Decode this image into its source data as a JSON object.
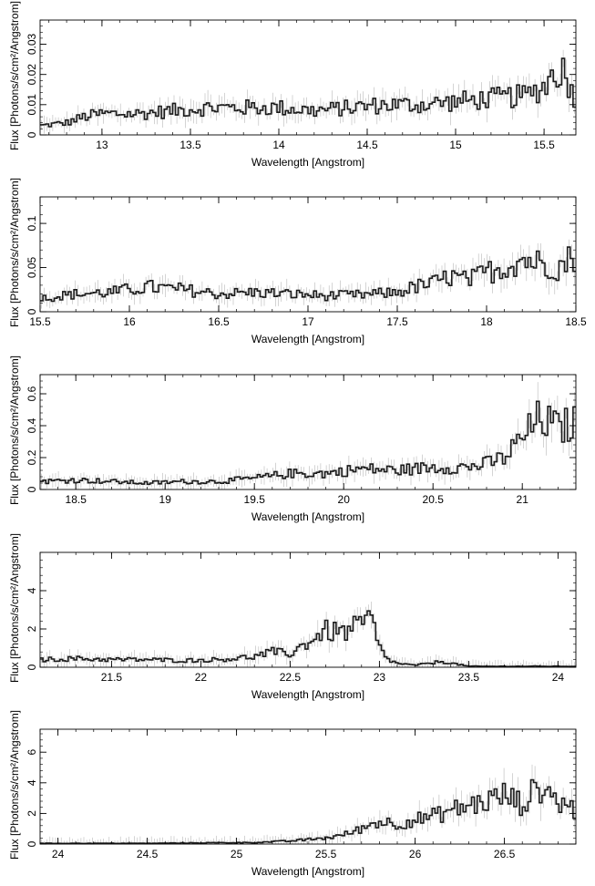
{
  "chart_data": [
    {
      "type": "line",
      "title": "",
      "xlabel": "Wavelength [Angstrom]",
      "ylabel": "Flux [Photons/s/cm²/Angstrom]",
      "xlim": [
        12.65,
        15.68
      ],
      "ylim": [
        0,
        0.038
      ],
      "xticks": [
        13,
        13.5,
        14,
        14.5,
        15,
        15.5
      ],
      "xtick_labels": [
        "13",
        "13.5",
        "14",
        "14.5",
        "15",
        "15.5"
      ],
      "yticks": [
        0,
        0.01,
        0.02,
        0.03
      ],
      "ytick_labels": [
        "0",
        "0.01",
        "0.02",
        "0.03"
      ],
      "grid": false,
      "series": [
        {
          "x": [
            12.65,
            12.8,
            12.9,
            13.0,
            13.2,
            13.4,
            13.6,
            13.8,
            14.0,
            14.2,
            14.4,
            14.6,
            14.8,
            15.0,
            15.2,
            15.4,
            15.5,
            15.55,
            15.6,
            15.68
          ],
          "y": [
            0.003,
            0.004,
            0.006,
            0.007,
            0.007,
            0.008,
            0.009,
            0.009,
            0.009,
            0.008,
            0.009,
            0.01,
            0.01,
            0.011,
            0.012,
            0.013,
            0.016,
            0.02,
            0.022,
            0.012
          ]
        }
      ]
    },
    {
      "type": "line",
      "title": "",
      "xlabel": "Wavelength [Angstrom]",
      "ylabel": "Flux [Photons/s/cm²/Angstrom]",
      "xlim": [
        15.5,
        18.5
      ],
      "ylim": [
        0,
        0.13
      ],
      "xticks": [
        15.5,
        16,
        16.5,
        17,
        17.5,
        18,
        18.5
      ],
      "xtick_labels": [
        "15.5",
        "16",
        "16.5",
        "17",
        "17.5",
        "18",
        "18.5"
      ],
      "yticks": [
        0,
        0.05,
        0.1
      ],
      "ytick_labels": [
        "0",
        "0.05",
        "0.1"
      ],
      "grid": false,
      "series": [
        {
          "x": [
            15.5,
            15.7,
            15.9,
            16.1,
            16.3,
            16.5,
            16.7,
            16.9,
            17.1,
            17.3,
            17.5,
            17.6,
            17.7,
            17.8,
            17.9,
            18.0,
            18.1,
            18.2,
            18.3,
            18.4,
            18.5
          ],
          "y": [
            0.015,
            0.02,
            0.022,
            0.028,
            0.025,
            0.02,
            0.022,
            0.02,
            0.018,
            0.019,
            0.022,
            0.028,
            0.032,
            0.04,
            0.035,
            0.045,
            0.05,
            0.06,
            0.055,
            0.05,
            0.065
          ]
        }
      ]
    },
    {
      "type": "line",
      "title": "",
      "xlabel": "Wavelength [Angstrom]",
      "ylabel": "Flux [Photons/s/cm²/Angstrom]",
      "xlim": [
        18.3,
        21.3
      ],
      "ylim": [
        0,
        0.72
      ],
      "xticks": [
        18.5,
        19,
        19.5,
        20,
        20.5,
        21
      ],
      "xtick_labels": [
        "18.5",
        "19",
        "19.5",
        "20",
        "20.5",
        "21"
      ],
      "yticks": [
        0,
        0.2,
        0.4,
        0.6
      ],
      "ytick_labels": [
        "0",
        "0.2",
        "0.4",
        "0.6"
      ],
      "grid": false,
      "series": [
        {
          "x": [
            18.3,
            18.5,
            18.7,
            18.9,
            19.1,
            19.3,
            19.5,
            19.7,
            19.9,
            20.1,
            20.3,
            20.5,
            20.7,
            20.8,
            20.9,
            21.0,
            21.1,
            21.2,
            21.3
          ],
          "y": [
            0.05,
            0.06,
            0.05,
            0.04,
            0.05,
            0.05,
            0.07,
            0.1,
            0.1,
            0.13,
            0.12,
            0.14,
            0.14,
            0.16,
            0.2,
            0.32,
            0.45,
            0.38,
            0.42
          ]
        }
      ]
    },
    {
      "type": "line",
      "title": "",
      "xlabel": "Wavelength [Angstrom]",
      "ylabel": "Flux [Photons/s/cm²/Angstrom]",
      "xlim": [
        21.1,
        24.1
      ],
      "ylim": [
        0,
        6.0
      ],
      "xticks": [
        21.5,
        22,
        22.5,
        23,
        23.5,
        24
      ],
      "xtick_labels": [
        "21.5",
        "22",
        "22.5",
        "23",
        "23.5",
        "24"
      ],
      "yticks": [
        0,
        2,
        4
      ],
      "ytick_labels": [
        "0",
        "2",
        "4"
      ],
      "grid": false,
      "series": [
        {
          "x": [
            21.1,
            21.3,
            21.5,
            21.7,
            21.9,
            22.1,
            22.3,
            22.4,
            22.5,
            22.6,
            22.7,
            22.8,
            22.9,
            22.95,
            23.0,
            23.05,
            23.1,
            23.2,
            23.35,
            23.5,
            23.8,
            24.1
          ],
          "y": [
            0.4,
            0.45,
            0.4,
            0.4,
            0.35,
            0.4,
            0.55,
            0.8,
            0.7,
            1.3,
            1.9,
            1.8,
            2.2,
            2.6,
            1.0,
            0.4,
            0.2,
            0.1,
            0.3,
            0.05,
            0.05,
            0.05
          ]
        }
      ]
    },
    {
      "type": "line",
      "title": "",
      "xlabel": "Wavelength [Angstrom]",
      "ylabel": "Flux [Photons/s/cm²/Angstrom]",
      "xlim": [
        23.9,
        26.9
      ],
      "ylim": [
        0,
        7.5
      ],
      "xticks": [
        24,
        24.5,
        25,
        25.5,
        26,
        26.5
      ],
      "xtick_labels": [
        "24",
        "24.5",
        "25",
        "25.5",
        "26",
        "26.5"
      ],
      "yticks": [
        0,
        2,
        4,
        6
      ],
      "ytick_labels": [
        "0",
        "2",
        "4",
        "6"
      ],
      "grid": false,
      "series": [
        {
          "x": [
            23.9,
            24.2,
            24.5,
            24.8,
            25.1,
            25.3,
            25.5,
            25.6,
            25.7,
            25.8,
            25.9,
            26.0,
            26.1,
            26.2,
            26.3,
            26.4,
            26.5,
            26.6,
            26.7,
            26.8,
            26.9
          ],
          "y": [
            0.05,
            0.05,
            0.05,
            0.08,
            0.1,
            0.2,
            0.4,
            0.6,
            1.0,
            1.5,
            1.3,
            1.6,
            1.8,
            2.2,
            2.5,
            2.8,
            3.2,
            2.6,
            3.8,
            2.8,
            2.2
          ]
        }
      ]
    }
  ]
}
